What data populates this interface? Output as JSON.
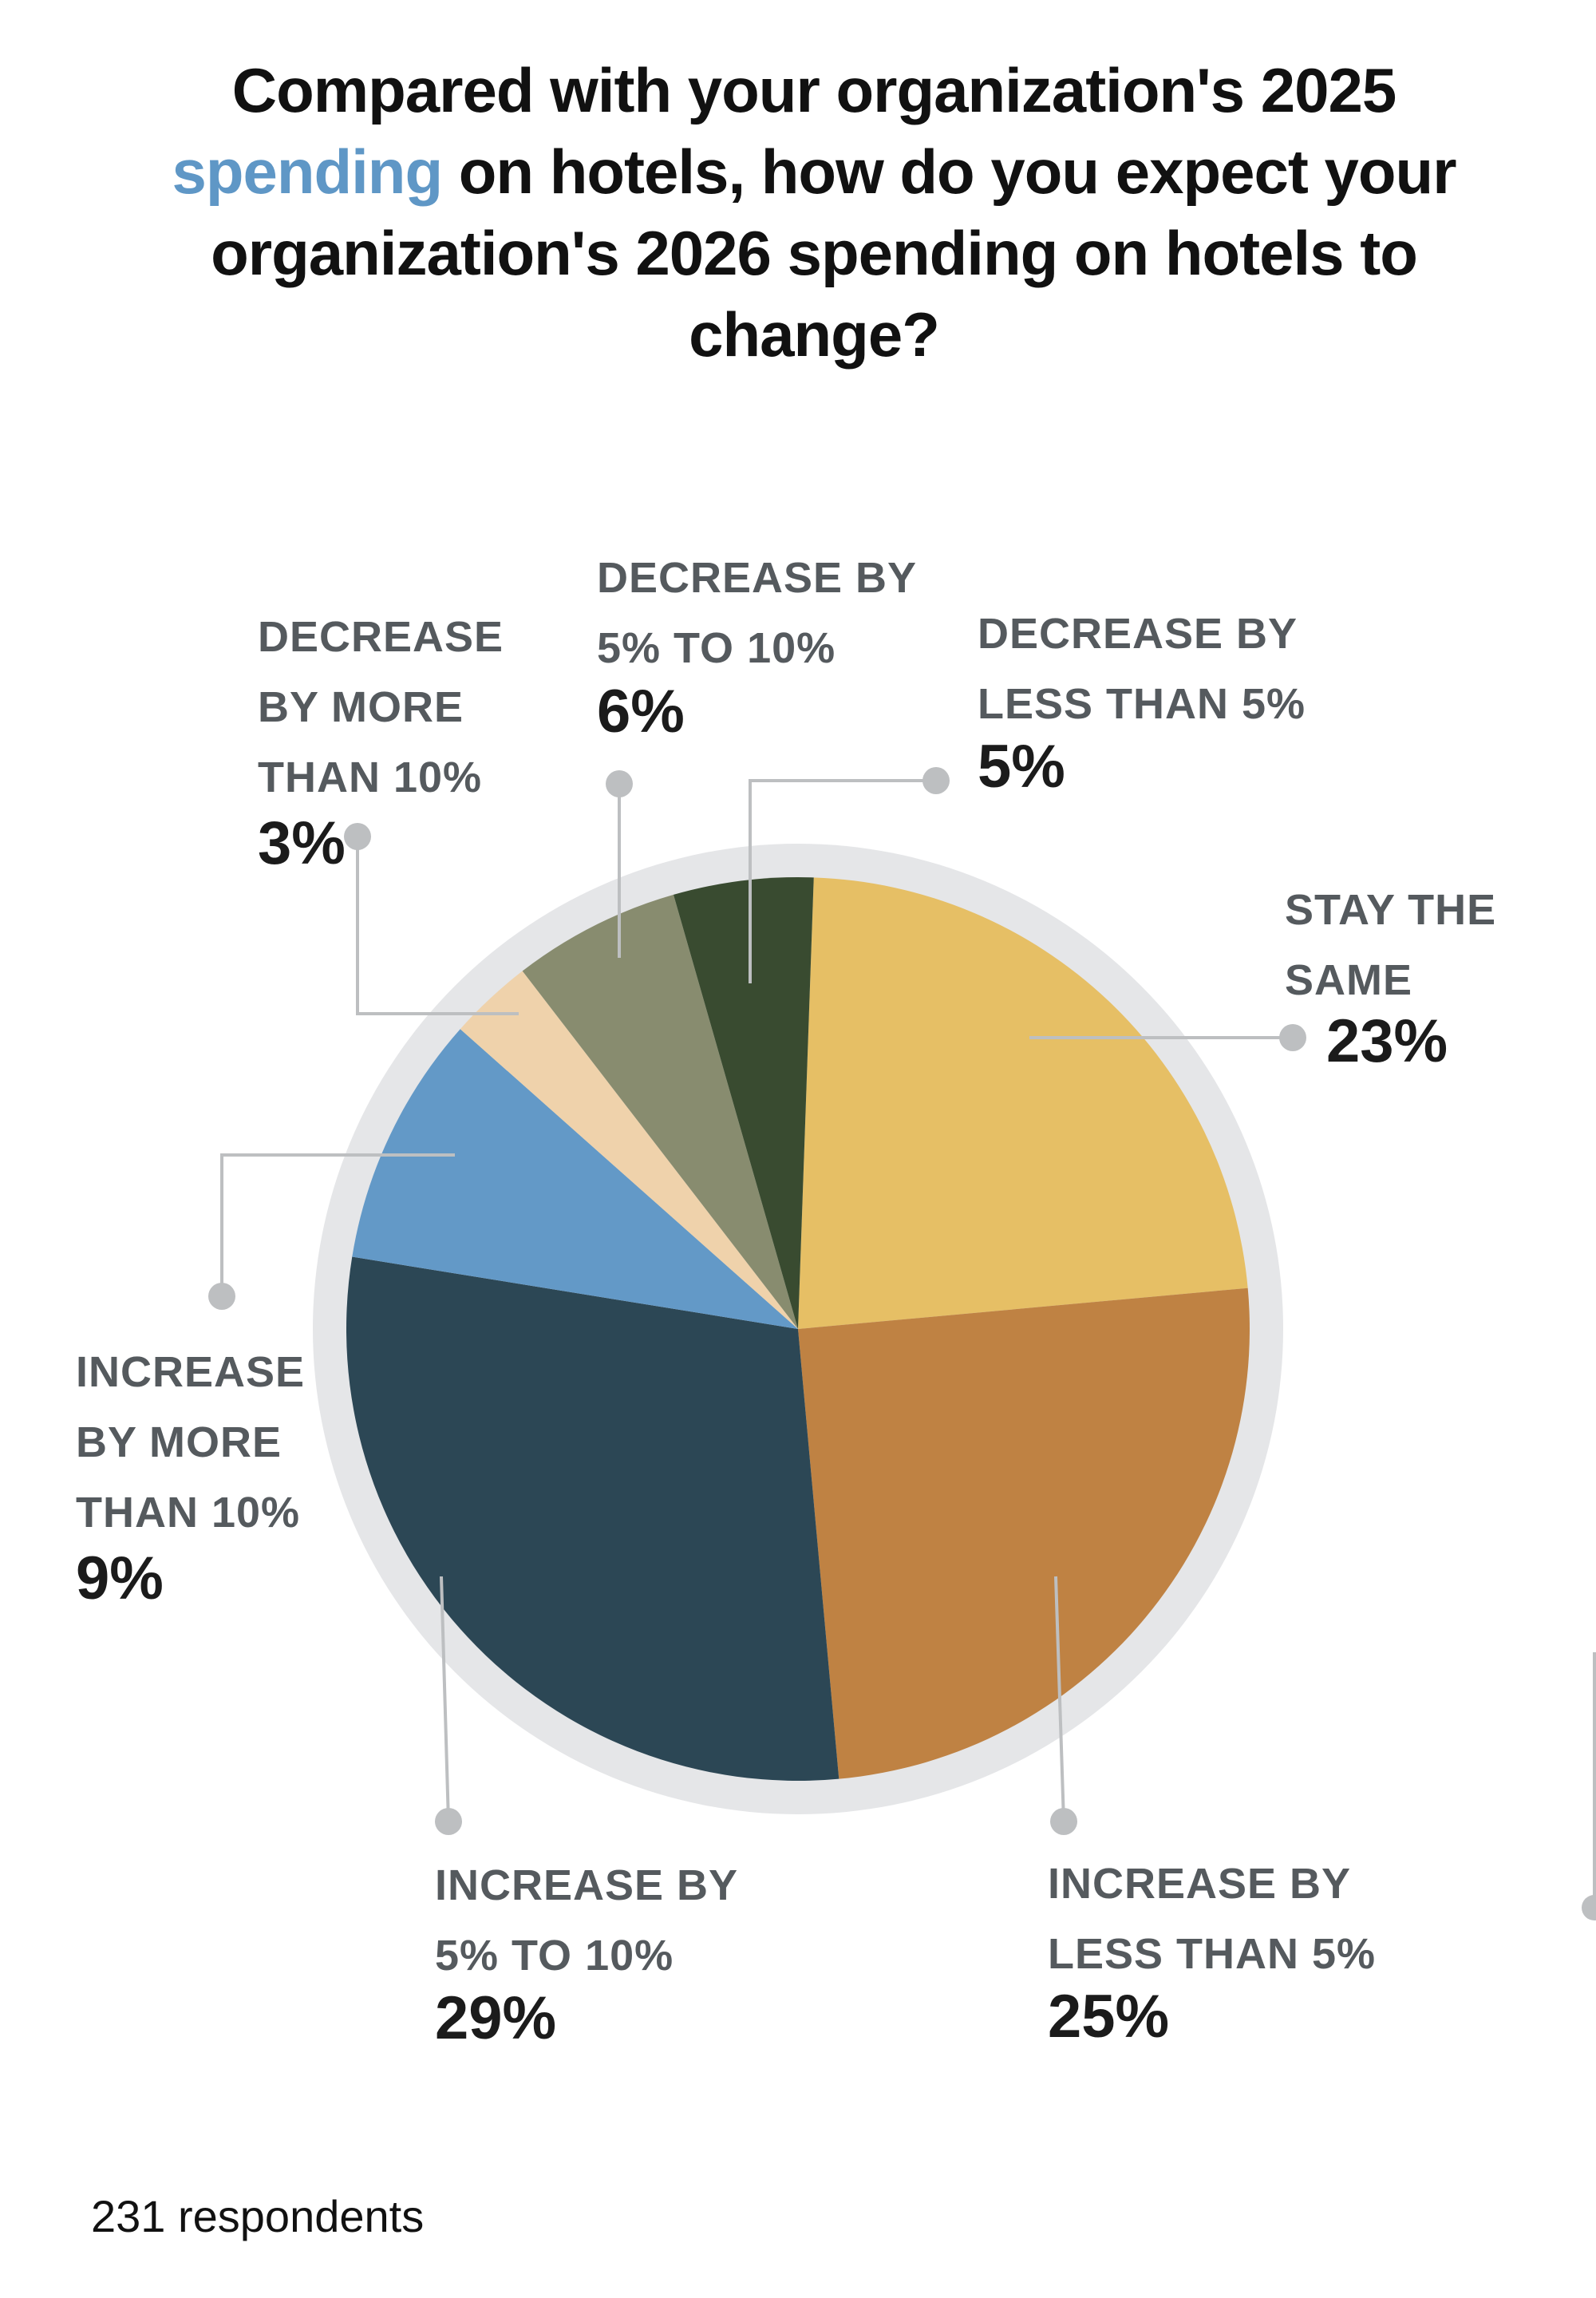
{
  "title": {
    "before": "Compared with your organization's 2025 ",
    "highlight": "spending",
    "after": " on hotels, how do you expect your organization's 2026 spending on hotels to change?",
    "highlight_color": "#5f97c6"
  },
  "footer": "231 respondents",
  "chart_data": {
    "type": "pie",
    "title": "Compared with your organization's 2025 spending on hotels, how do you expect your organization's 2026 spending on hotels to change?",
    "total_respondents": 231,
    "slices": [
      {
        "label": "STAY THE SAME",
        "value": 23,
        "display": "23%",
        "color": "#e6bf65"
      },
      {
        "label": "INCREASE BY LESS THAN 5%",
        "value": 25,
        "display": "25%",
        "color": "#bf8243"
      },
      {
        "label": "INCREASE BY 5% TO 10%",
        "value": 29,
        "display": "29%",
        "color": "#2c4755"
      },
      {
        "label": "INCREASE BY MORE THAN 10%",
        "value": 9,
        "display": "9%",
        "color": "#6399c7"
      },
      {
        "label": "DECREASE BY MORE THAN 10%",
        "value": 3,
        "display": "3%",
        "color": "#efd2ab"
      },
      {
        "label": "DECREASE BY 5% TO 10%",
        "value": 6,
        "display": "6%",
        "color": "#888c6f"
      },
      {
        "label": "DECREASE BY LESS THAN 5%",
        "value": 5,
        "display": "5%",
        "color": "#394b30"
      }
    ],
    "ring_color": "#e5e6e8",
    "leader_color": "#bdbfc1"
  }
}
